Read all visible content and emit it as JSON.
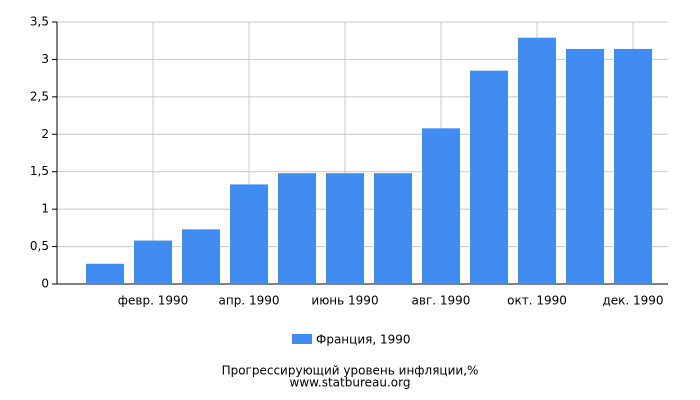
{
  "chart_data": {
    "type": "bar",
    "title": "Прогрессирующий уровень инфляции,%",
    "subtitle": "www.statbureau.org",
    "categories": [
      null,
      "февр. 1990",
      null,
      "апр. 1990",
      null,
      "июнь 1990",
      null,
      "авг. 1990",
      null,
      "окт. 1990",
      null,
      "дек. 1990"
    ],
    "series": [
      {
        "name": "Франция, 1990",
        "color": "#418cf0",
        "values": [
          0.27,
          0.58,
          0.73,
          1.33,
          1.48,
          1.48,
          1.48,
          2.08,
          2.85,
          3.29,
          3.14,
          3.14
        ]
      }
    ],
    "ylim": [
      0,
      3.5
    ],
    "yticks": [
      0,
      {
        "value": 0.5,
        "label": "0,5"
      },
      1,
      {
        "value": 1.5,
        "label": "1,5"
      },
      2,
      {
        "value": 2.5,
        "label": "2,5"
      },
      3,
      {
        "value": 3.5,
        "label": "3,5"
      }
    ],
    "grid": true
  }
}
